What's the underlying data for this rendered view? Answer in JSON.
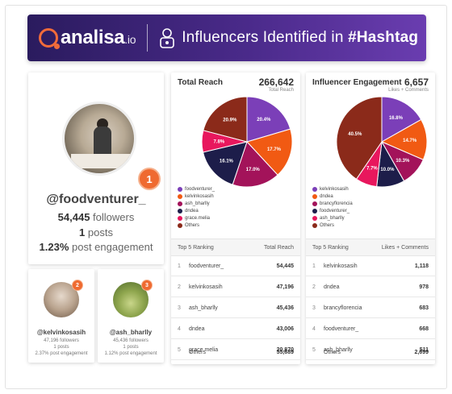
{
  "header": {
    "logo_main": "analisa",
    "logo_suffix": ".io",
    "title_prefix": "Influencers Identified in ",
    "title_hashtag": "#Hashtag"
  },
  "main_profile": {
    "rank": "1",
    "handle": "@foodventurer_",
    "followers_value": "54,445",
    "followers_label": " followers",
    "posts_value": "1",
    "posts_label": " posts",
    "engagement_value": "1.23%",
    "engagement_label": " post engagement"
  },
  "small_profiles": [
    {
      "rank": "2",
      "handle": "@kelvinkosasih",
      "followers": "47,196 followers",
      "posts": "1 posts",
      "engagement": "2.37% post engagement"
    },
    {
      "rank": "3",
      "handle": "@ash_bharlly",
      "followers": "45,436 followers",
      "posts": "1 posts",
      "engagement": "1.12% post engagement"
    }
  ],
  "colors": {
    "purple": "#7b3fb8",
    "orange": "#f15a13",
    "magenta": "#a3135a",
    "navy": "#1d1d4a",
    "pink": "#e8175d",
    "brown": "#8b2a1a"
  },
  "chart_data": [
    {
      "type": "pie",
      "title": "Total Reach",
      "total": "266,642",
      "total_label": "Total Reach",
      "slices": [
        {
          "name": "foodventurer_",
          "value": 20.4,
          "label": "20.4%",
          "color": "#7b3fb8"
        },
        {
          "name": "kelvinkosasih",
          "value": 17.7,
          "label": "17.7%",
          "color": "#f15a13"
        },
        {
          "name": "ash_bharlly",
          "value": 17.0,
          "label": "17.0%",
          "color": "#a3135a"
        },
        {
          "name": "dndea",
          "value": 16.1,
          "label": "16.1%",
          "color": "#1d1d4a"
        },
        {
          "name": "grace.melia",
          "value": 7.8,
          "label": "7.8%",
          "color": "#e8175d"
        },
        {
          "name": "Others",
          "value": 20.9,
          "label": "20.9%",
          "color": "#8b2a1a"
        }
      ],
      "ranking_header": "Top 5 Ranking",
      "ranking_value_header": "Total Reach",
      "ranking": [
        {
          "rank": "1",
          "name": "foodventurer_",
          "value": "54,445"
        },
        {
          "rank": "2",
          "name": "kelvinkosasih",
          "value": "47,196"
        },
        {
          "rank": "3",
          "name": "ash_bharlly",
          "value": "45,436"
        },
        {
          "rank": "4",
          "name": "dndea",
          "value": "43,006"
        },
        {
          "rank": "5",
          "name": "grace.melia",
          "value": "20,870"
        }
      ],
      "others_label": "Others",
      "others_value": "55,689"
    },
    {
      "type": "pie",
      "title": "Influencer Engagement",
      "total": "6,657",
      "total_label": "Likes + Comments",
      "slices": [
        {
          "name": "kelvinkosasih",
          "value": 16.8,
          "label": "16.8%",
          "color": "#7b3fb8"
        },
        {
          "name": "dndea",
          "value": 14.7,
          "label": "14.7%",
          "color": "#f15a13"
        },
        {
          "name": "brancyflorencia",
          "value": 10.3,
          "label": "10.3%",
          "color": "#a3135a"
        },
        {
          "name": "foodventurer_",
          "value": 10.0,
          "label": "10.0%",
          "color": "#1d1d4a"
        },
        {
          "name": "ash_bharlly",
          "value": 7.7,
          "label": "7.7%",
          "color": "#e8175d"
        },
        {
          "name": "Others",
          "value": 40.5,
          "label": "40.5%",
          "color": "#8b2a1a"
        }
      ],
      "ranking_header": "Top 5 Ranking",
      "ranking_value_header": "Likes + Comments",
      "ranking": [
        {
          "rank": "1",
          "name": "kelvinkosasih",
          "value": "1,118"
        },
        {
          "rank": "2",
          "name": "dndea",
          "value": "978"
        },
        {
          "rank": "3",
          "name": "brancyflorencia",
          "value": "683"
        },
        {
          "rank": "4",
          "name": "foodventurer_",
          "value": "668"
        },
        {
          "rank": "5",
          "name": "ash_bharlly",
          "value": "511"
        }
      ],
      "others_label": "Others",
      "others_value": "2,699"
    }
  ]
}
